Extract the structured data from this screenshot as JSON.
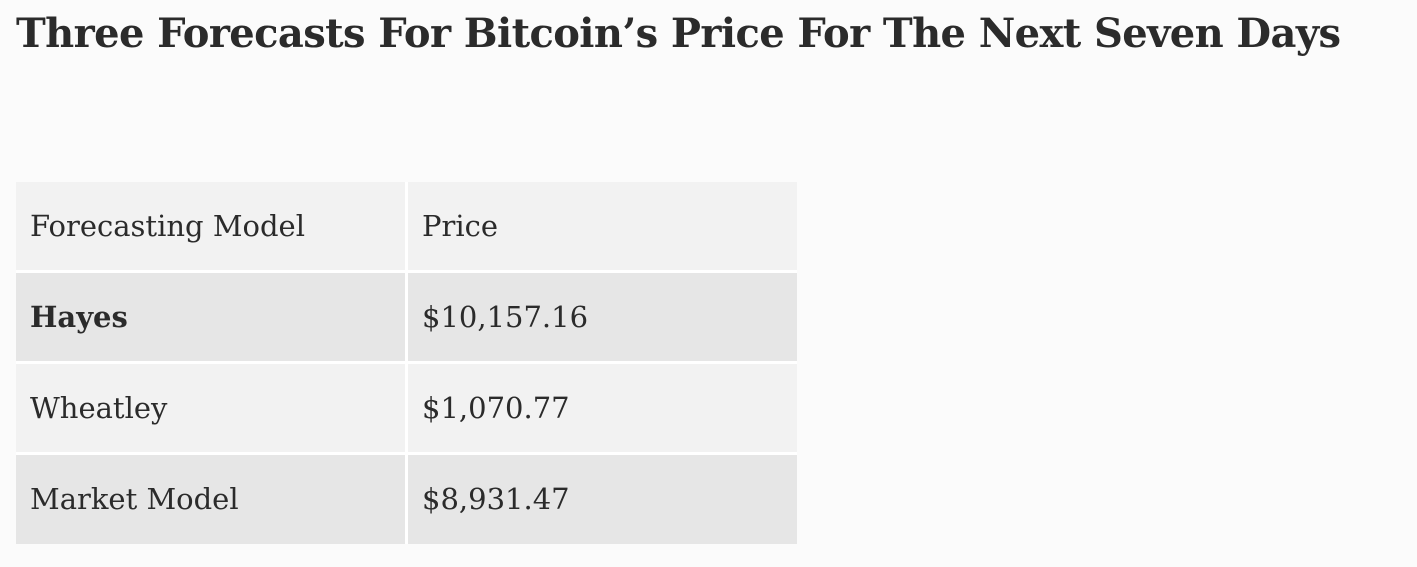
{
  "title": "Three Forecasts For Bitcoin’s Price For The Next Seven Days",
  "table": {
    "headers": [
      "Forecasting Model",
      "Price"
    ],
    "rows": [
      {
        "model": "Hayes",
        "price": "$10,157.16"
      },
      {
        "model": "Wheatley",
        "price": "$1,070.77"
      },
      {
        "model": "Market Model",
        "price": "$8,931.47"
      }
    ]
  },
  "colors": {
    "background": "#fbfbfb",
    "row_light": "#f2f2f2",
    "row_dark": "#e6e6e6",
    "text": "#2b2b2b"
  }
}
